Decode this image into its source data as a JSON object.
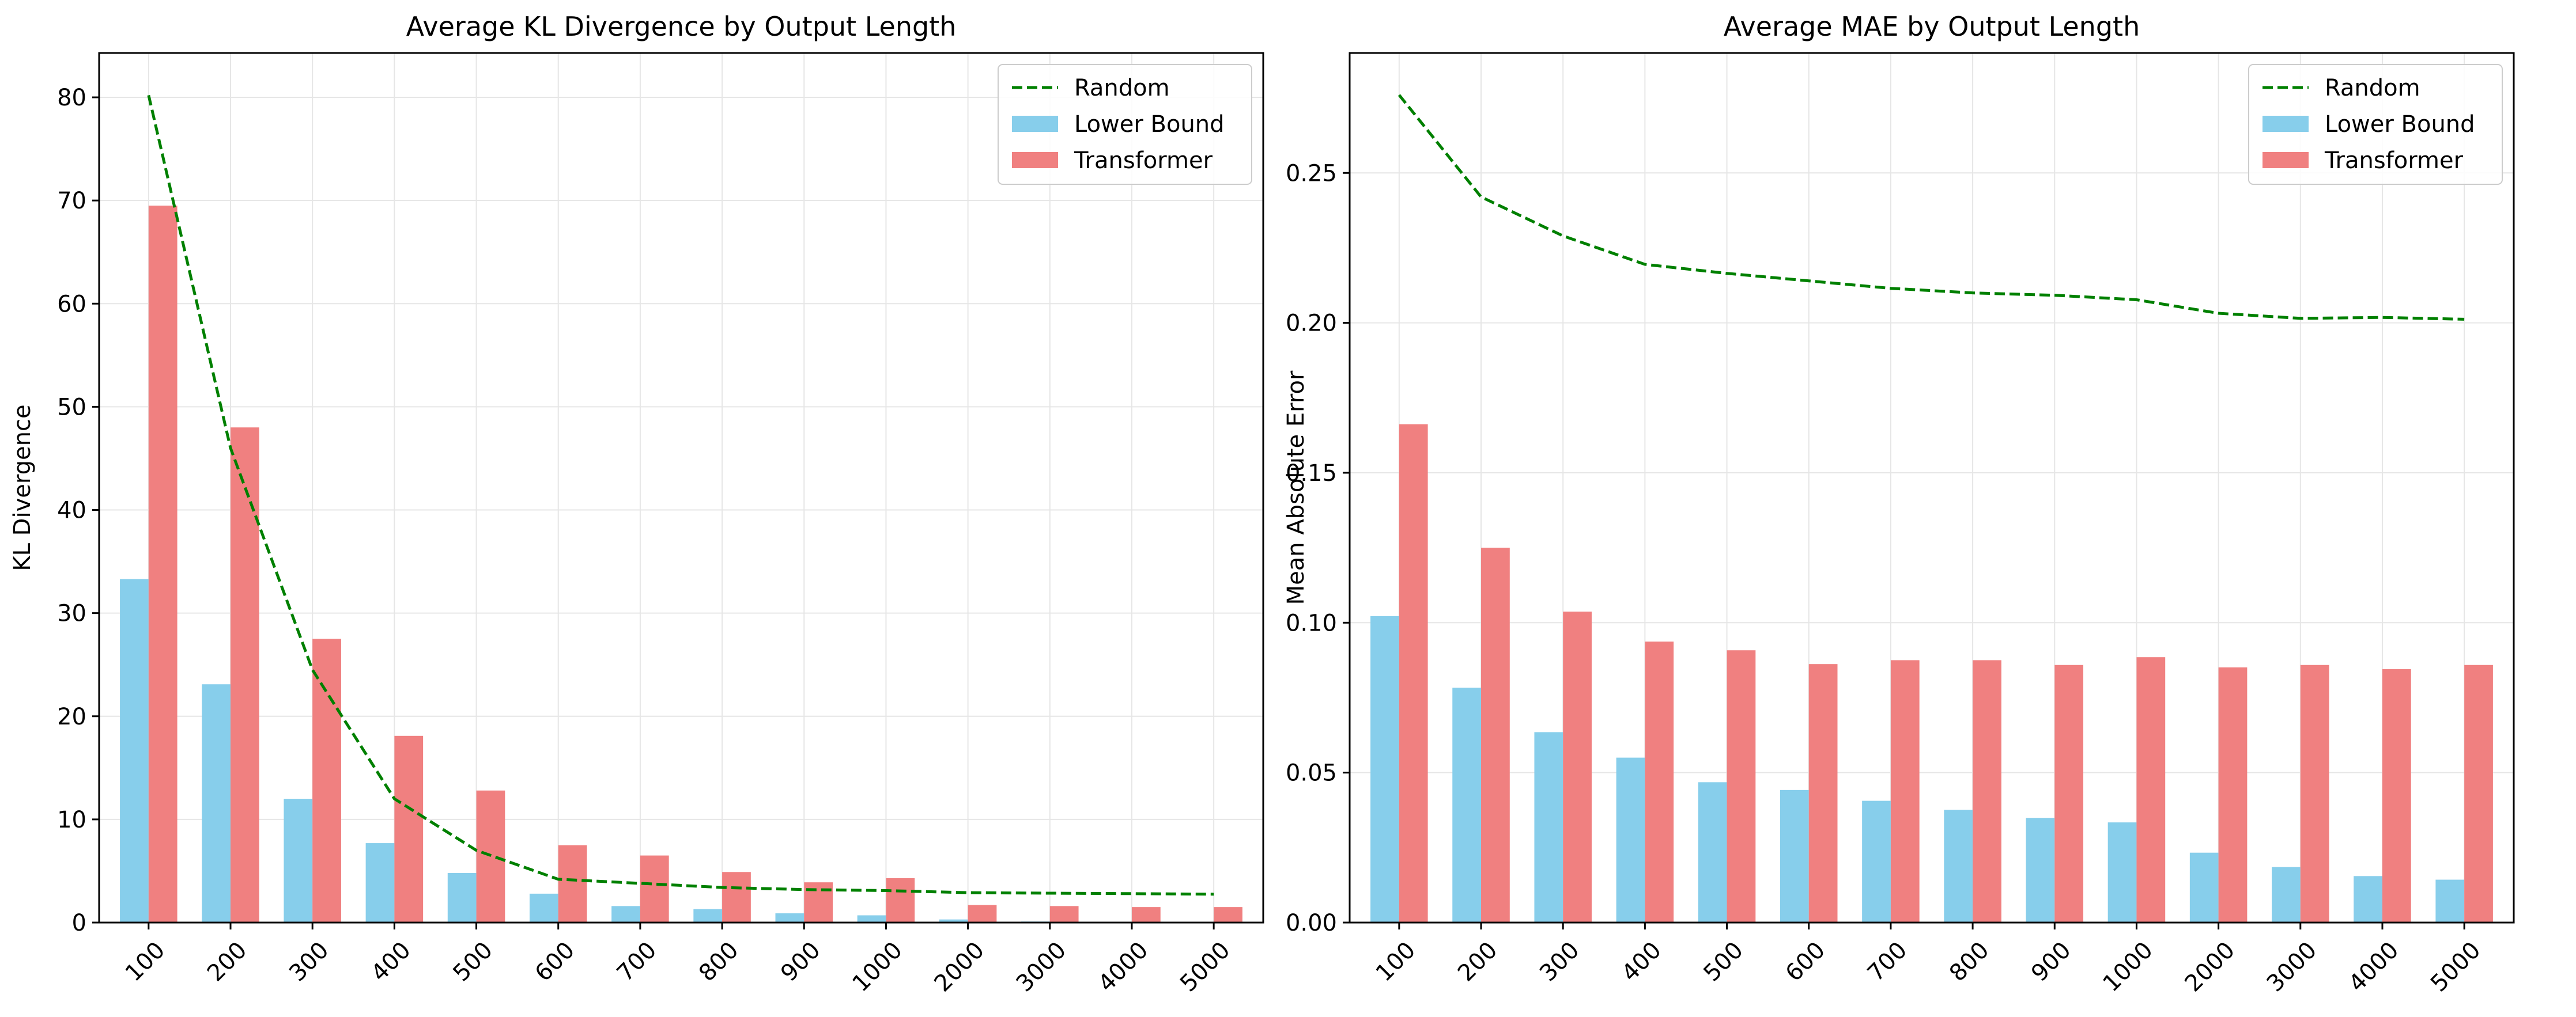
{
  "colors": {
    "random": "#008000",
    "lower_bound": "#87CEEB",
    "transformer": "#F08080",
    "grid": "#e6e6e6",
    "axis": "#000000"
  },
  "chart_data": [
    {
      "type": "bar",
      "title": "Average KL Divergence by Output Length",
      "xlabel": "",
      "ylabel": "KL Divergence",
      "categories": [
        "100",
        "200",
        "300",
        "400",
        "500",
        "600",
        "700",
        "800",
        "900",
        "1000",
        "2000",
        "3000",
        "4000",
        "5000"
      ],
      "ylim": [
        0,
        84.3
      ],
      "yticks": [
        0,
        10,
        20,
        30,
        40,
        50,
        60,
        70,
        80
      ],
      "ytick_labels": [
        "0",
        "10",
        "20",
        "30",
        "40",
        "50",
        "60",
        "70",
        "80"
      ],
      "grid": true,
      "legend_position": "top-right",
      "series": [
        {
          "name": "Random",
          "kind": "line",
          "style": "dashed",
          "values": [
            80.2,
            46.0,
            24.5,
            12.0,
            7.0,
            4.2,
            3.8,
            3.4,
            3.2,
            3.1,
            2.9,
            2.85,
            2.8,
            2.75
          ]
        },
        {
          "name": "Lower Bound",
          "kind": "bar",
          "values": [
            33.3,
            23.1,
            12.0,
            7.7,
            4.8,
            2.8,
            1.6,
            1.3,
            0.9,
            0.7,
            0.3,
            0.1,
            0.05,
            0.02
          ]
        },
        {
          "name": "Transformer",
          "kind": "bar",
          "values": [
            69.5,
            48.0,
            27.5,
            18.1,
            12.8,
            7.5,
            6.5,
            4.9,
            3.9,
            4.3,
            1.7,
            1.6,
            1.5,
            1.5
          ]
        }
      ]
    },
    {
      "type": "bar",
      "title": "Average MAE by Output Length",
      "xlabel": "",
      "ylabel": "Mean Absolute Error",
      "categories": [
        "100",
        "200",
        "300",
        "400",
        "500",
        "600",
        "700",
        "800",
        "900",
        "1000",
        "2000",
        "3000",
        "4000",
        "5000"
      ],
      "ylim": [
        0,
        0.29
      ],
      "yticks": [
        0,
        0.05,
        0.1,
        0.15,
        0.2,
        0.25
      ],
      "ytick_labels": [
        "0.00",
        "0.05",
        "0.10",
        "0.15",
        "0.20",
        "0.25"
      ],
      "grid": true,
      "legend_position": "top-right",
      "series": [
        {
          "name": "Random",
          "kind": "line",
          "style": "dashed",
          "values": [
            0.276,
            0.242,
            0.229,
            0.2195,
            0.2165,
            0.214,
            0.2115,
            0.21,
            0.2092,
            0.2077,
            0.2032,
            0.2015,
            0.2018,
            0.2012
          ]
        },
        {
          "name": "Lower Bound",
          "kind": "bar",
          "values": [
            0.1022,
            0.0783,
            0.0635,
            0.055,
            0.0468,
            0.0442,
            0.0406,
            0.0376,
            0.0349,
            0.0334,
            0.0233,
            0.0185,
            0.0155,
            0.0143
          ]
        },
        {
          "name": "Transformer",
          "kind": "bar",
          "values": [
            0.1662,
            0.125,
            0.1037,
            0.0937,
            0.0908,
            0.0862,
            0.0875,
            0.0875,
            0.0859,
            0.0885,
            0.0851,
            0.0859,
            0.0845,
            0.0859
          ]
        }
      ]
    }
  ]
}
